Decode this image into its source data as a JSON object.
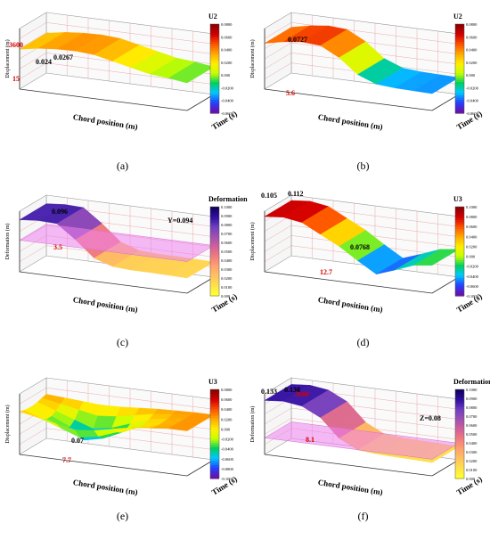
{
  "chart_data": [
    {
      "type": "surface",
      "caption": "(a)",
      "legend_title": "U2",
      "legend_ticks": [
        "0.0800",
        "0.0600",
        "0.0400",
        "0.0200",
        "0.000",
        "-0.0200",
        "-0.0400",
        "-0.0600"
      ],
      "colormap": [
        "#6a0dad",
        "#2244ff",
        "#00c8ff",
        "#00d060",
        "#c8ff00",
        "#ffee00",
        "#ffaa00",
        "#ff5500",
        "#d40000",
        "#8b0000"
      ],
      "xlabel": "Chord position (m)",
      "ylabel": "Time (s)",
      "zlabel": "Displacement (m)",
      "annotations": [
        "0.024",
        "0.0267",
        "3600",
        "15"
      ],
      "surface_profile": [
        0.02,
        0.024,
        0.026,
        0.0267,
        0.025,
        0.02,
        0.015,
        0.01,
        0.008,
        0.005
      ],
      "plane": null
    },
    {
      "type": "surface",
      "caption": "(b)",
      "legend_title": "U2",
      "legend_ticks": [
        "0.0800",
        "0.0600",
        "0.0400",
        "0.0200",
        "0.000",
        "-0.0200",
        "-0.0400",
        "-0.0600"
      ],
      "colormap": [
        "#6a0dad",
        "#2244ff",
        "#00c8ff",
        "#00d060",
        "#c8ff00",
        "#ffee00",
        "#ffaa00",
        "#ff5500",
        "#d40000",
        "#8b0000"
      ],
      "xlabel": "Chord position (m)",
      "ylabel": "Time (s)",
      "zlabel": "Displacement (m)",
      "annotations": [
        "0.0727",
        "5.6"
      ],
      "surface_profile": [
        0.06,
        0.068,
        0.0727,
        0.07,
        0.05,
        0.02,
        0.005,
        0.002,
        0.001,
        0.0
      ],
      "plane": null
    },
    {
      "type": "surface",
      "caption": "(c)",
      "legend_title": "Deformation",
      "legend_ticks": [
        "0.1000",
        "0.0900",
        "0.0800",
        "0.0700",
        "0.0600",
        "0.0500",
        "0.0400",
        "0.0300",
        "0.0200",
        "0.0100",
        "0.000"
      ],
      "colormap": [
        "#ffff33",
        "#ffe04a",
        "#ffc060",
        "#ffa070",
        "#f07a80",
        "#d0609a",
        "#a050b0",
        "#7040c0",
        "#3010a0",
        "#100060"
      ],
      "xlabel": "Chord position (m)",
      "ylabel": "Time (s)",
      "zlabel": "Deformation (m)",
      "annotations": [
        "0.096",
        "Y=0.094",
        "3.5"
      ],
      "surface_profile": [
        0.092,
        0.096,
        0.094,
        0.06,
        0.02,
        0.005,
        0.002,
        0.002,
        0.001,
        0.0
      ],
      "plane": 0.094
    },
    {
      "type": "surface",
      "caption": "(d)",
      "legend_title": "U3",
      "legend_ticks": [
        "0.1000",
        "0.0800",
        "0.0600",
        "0.0400",
        "0.0200",
        "0.000",
        "-0.0200",
        "-0.0400",
        "-0.0600",
        "-0.1000"
      ],
      "colormap": [
        "#6a0dad",
        "#2244ff",
        "#00c8ff",
        "#00d060",
        "#c8ff00",
        "#ffee00",
        "#ffaa00",
        "#ff5500",
        "#d40000",
        "#8b0000"
      ],
      "xlabel": "Chord position (m)",
      "ylabel": "Time (s)",
      "zlabel": "Displacement (m)",
      "annotations": [
        "0.105",
        "0.112",
        "0.0768",
        "12.7"
      ],
      "surface_profile": [
        0.105,
        0.112,
        0.1,
        0.06,
        0.02,
        -0.03,
        -0.0768,
        -0.05,
        -0.02,
        -0.01
      ],
      "plane": null
    },
    {
      "type": "surface",
      "caption": "(e)",
      "legend_title": "U3",
      "legend_ticks": [
        "0.0800",
        "0.0600",
        "0.0400",
        "0.0200",
        "0.000",
        "-0.0200",
        "-0.0400",
        "-0.0600",
        "-0.0800",
        "-0.1000"
      ],
      "colormap": [
        "#6a0dad",
        "#2244ff",
        "#00c8ff",
        "#00d060",
        "#c8ff00",
        "#ffee00",
        "#ffaa00",
        "#ff5500",
        "#d40000",
        "#8b0000"
      ],
      "xlabel": "Chord position (m)",
      "ylabel": "Time (s)",
      "zlabel": "Displacement (m)",
      "annotations": [
        "0.07",
        "7.7"
      ],
      "surface_profile": [
        -0.01,
        -0.03,
        -0.05,
        -0.07,
        -0.06,
        -0.04,
        -0.02,
        -0.01,
        0.0,
        0.0
      ],
      "plane": null
    },
    {
      "type": "surface",
      "caption": "(f)",
      "legend_title": "Deformation",
      "legend_ticks": [
        "0.1000",
        "0.0900",
        "0.0800",
        "0.0700",
        "0.0600",
        "0.0500",
        "0.0400",
        "0.0300",
        "0.0200",
        "0.0100",
        "0.000"
      ],
      "colormap": [
        "#ffff33",
        "#ffe04a",
        "#ffc060",
        "#ffa070",
        "#f07a80",
        "#d0609a",
        "#a050b0",
        "#7040c0",
        "#3010a0",
        "#100060"
      ],
      "xlabel": "Chord position (m)",
      "ylabel": "Time (s)",
      "zlabel": "Deformation (m)",
      "annotations": [
        "0.133",
        "0.138",
        "Z=0.08",
        "8.1",
        "3600"
      ],
      "surface_profile": [
        0.133,
        0.138,
        0.13,
        0.1,
        0.04,
        0.01,
        0.005,
        0.003,
        0.002,
        0.0
      ],
      "plane": 0.08
    }
  ]
}
